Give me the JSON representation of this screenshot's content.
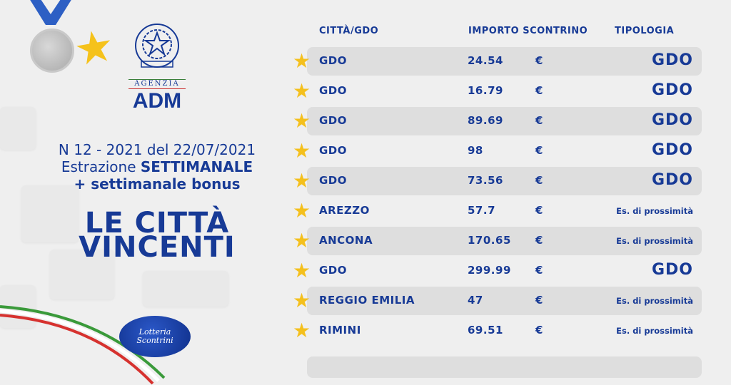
{
  "header": {
    "agency_small": "AGENZIA",
    "agency_name": "ADM",
    "draw_line": "N 12 - 2021 del 22/07/2021",
    "extraction_prefix": "Estrazione ",
    "extraction_type": "SETTIMANALE",
    "bonus_line": "+ settimanale bonus",
    "title_line1": "LE CITTÀ",
    "title_line2": "VINCENTI",
    "logo_line1": "Lotteria",
    "logo_line2": "Scontrini"
  },
  "table": {
    "columns": [
      "CITTÀ/GDO",
      "IMPORTO SCONTRINO",
      "TIPOLOGIA"
    ],
    "currency": "€",
    "rows": [
      {
        "city": "GDO",
        "amount": "24.54",
        "type": "GDO"
      },
      {
        "city": "GDO",
        "amount": "16.79",
        "type": "GDO"
      },
      {
        "city": "GDO",
        "amount": "89.69",
        "type": "GDO"
      },
      {
        "city": "GDO",
        "amount": "98",
        "type": "GDO"
      },
      {
        "city": "GDO",
        "amount": "73.56",
        "type": "GDO"
      },
      {
        "city": "AREZZO",
        "amount": "57.7",
        "type": "Es. di prossimità"
      },
      {
        "city": "ANCONA",
        "amount": "170.65",
        "type": "Es. di prossimità"
      },
      {
        "city": "GDO",
        "amount": "299.99",
        "type": "GDO"
      },
      {
        "city": "REGGIO EMILIA",
        "amount": "47",
        "type": "Es. di prossimità"
      },
      {
        "city": "RIMINI",
        "amount": "69.51",
        "type": "Es. di prossimità"
      }
    ]
  },
  "colors": {
    "brand_blue": "#173a96",
    "star_gold": "#f4c01d",
    "row_shade": "#dedede",
    "background": "#efefef"
  }
}
